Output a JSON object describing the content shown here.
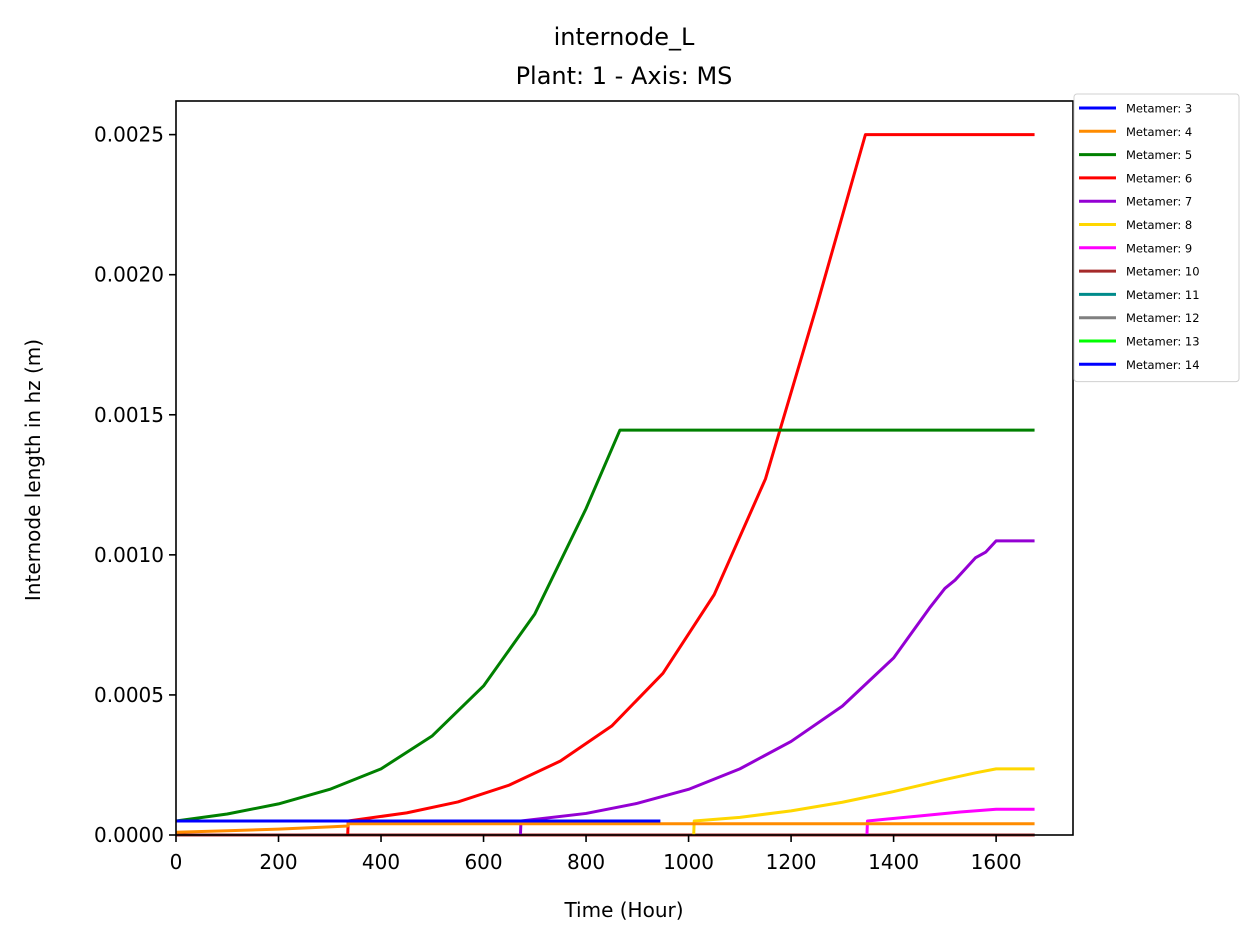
{
  "chart_data": {
    "type": "line",
    "title": "internode_L",
    "subtitle": "Plant: 1 - Axis: MS",
    "xlabel": "Time (Hour)",
    "ylabel": "Internode length in hz (m)",
    "xlim": [
      0,
      1750
    ],
    "ylim": [
      0,
      0.00262
    ],
    "xticks": [
      0,
      200,
      400,
      600,
      800,
      1000,
      1200,
      1400,
      1600
    ],
    "yticks": [
      0,
      0.0005,
      0.001,
      0.0015,
      0.002,
      0.0025
    ],
    "xtick_labels": [
      "0",
      "200",
      "400",
      "600",
      "800",
      "1000",
      "1200",
      "1400",
      "1600"
    ],
    "ytick_labels": [
      "0.0000",
      "0.0005",
      "0.0010",
      "0.0015",
      "0.0020",
      "0.0025"
    ],
    "grid": false,
    "legend_position": "outside-top-right",
    "series": [
      {
        "name": "Metamer: 3",
        "color": "#0000ff",
        "points": [
          [
            0,
            5e-05
          ],
          [
            945,
            5e-05
          ]
        ]
      },
      {
        "name": "Metamer: 4",
        "color": "#ff8c00",
        "points": [
          [
            0,
            1e-05
          ],
          [
            100,
            1.5e-05
          ],
          [
            200,
            2.1e-05
          ],
          [
            300,
            2.9e-05
          ],
          [
            335,
            3.2e-05
          ],
          [
            336,
            4e-05
          ],
          [
            1675,
            4e-05
          ]
        ]
      },
      {
        "name": "Metamer: 5",
        "color": "#008000",
        "points": [
          [
            0,
            5e-05
          ],
          [
            100,
            7.5e-05
          ],
          [
            200,
            0.000111
          ],
          [
            300,
            0.000163
          ],
          [
            400,
            0.000236
          ],
          [
            500,
            0.000354
          ],
          [
            600,
            0.000532
          ],
          [
            700,
            0.000789
          ],
          [
            800,
            0.001165
          ],
          [
            866,
            0.001445
          ],
          [
            1675,
            0.001445
          ]
        ]
      },
      {
        "name": "Metamer: 6",
        "color": "#ff0000",
        "points": [
          [
            335,
            0
          ],
          [
            336,
            5e-05
          ],
          [
            450,
            7.9e-05
          ],
          [
            550,
            0.000118
          ],
          [
            650,
            0.000178
          ],
          [
            750,
            0.000264
          ],
          [
            850,
            0.000389
          ],
          [
            950,
            0.000577
          ],
          [
            1050,
            0.000858
          ],
          [
            1150,
            0.001271
          ],
          [
            1250,
            0.001888
          ],
          [
            1345,
            0.0025
          ],
          [
            1675,
            0.0025
          ]
        ]
      },
      {
        "name": "Metamer: 7",
        "color": "#9400d3",
        "points": [
          [
            672,
            0
          ],
          [
            673,
            5e-05
          ],
          [
            800,
            7.7e-05
          ],
          [
            900,
            0.000113
          ],
          [
            1000,
            0.000163
          ],
          [
            1100,
            0.000236
          ],
          [
            1200,
            0.000334
          ],
          [
            1300,
            0.00046
          ],
          [
            1400,
            0.000632
          ],
          [
            1470,
            0.00081
          ],
          [
            1500,
            0.00088
          ],
          [
            1520,
            0.00091
          ],
          [
            1540,
            0.00095
          ],
          [
            1560,
            0.00099
          ],
          [
            1580,
            0.00101
          ],
          [
            1600,
            0.00105
          ],
          [
            1675,
            0.00105
          ]
        ]
      },
      {
        "name": "Metamer: 8",
        "color": "#ffd700",
        "points": [
          [
            1010,
            0
          ],
          [
            1011,
            5e-05
          ],
          [
            1100,
            6.3e-05
          ],
          [
            1200,
            8.6e-05
          ],
          [
            1300,
            0.000117
          ],
          [
            1400,
            0.000155
          ],
          [
            1500,
            0.000198
          ],
          [
            1560,
            0.000222
          ],
          [
            1600,
            0.000236
          ],
          [
            1675,
            0.000236
          ]
        ]
      },
      {
        "name": "Metamer: 9",
        "color": "#ff00ff",
        "points": [
          [
            1348,
            0
          ],
          [
            1349,
            5e-05
          ],
          [
            1450,
            6.8e-05
          ],
          [
            1530,
            8.2e-05
          ],
          [
            1600,
            9.2e-05
          ],
          [
            1675,
            9.2e-05
          ]
        ]
      },
      {
        "name": "Metamer: 10",
        "color": "#a52a2a",
        "points": [
          [
            0,
            0
          ],
          [
            1675,
            0
          ]
        ]
      },
      {
        "name": "Metamer: 11",
        "color": "#008b8b",
        "points": [
          [
            0,
            0
          ],
          [
            1675,
            0
          ]
        ]
      },
      {
        "name": "Metamer: 12",
        "color": "#808080",
        "points": [
          [
            0,
            0
          ],
          [
            1675,
            0
          ]
        ]
      },
      {
        "name": "Metamer: 13",
        "color": "#00ff00",
        "points": [
          [
            0,
            0
          ],
          [
            1675,
            0
          ]
        ]
      },
      {
        "name": "Metamer: 14",
        "color": "#0000ff",
        "points": [
          [
            0,
            0
          ],
          [
            1675,
            0
          ]
        ]
      }
    ]
  }
}
